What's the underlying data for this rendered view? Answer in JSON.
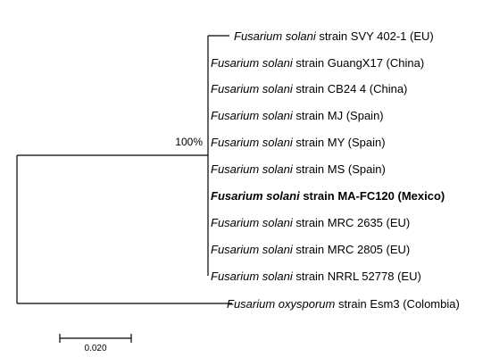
{
  "tree": {
    "bootstrap_label": "100%",
    "scale_label": "0.020",
    "ingroup": [
      {
        "species": "Fusarium solani",
        "rest": " strain SVY 402-1 (EU)",
        "bold": false
      },
      {
        "species": "Fusarium solani",
        "rest": " strain GuangX17 (China)",
        "bold": false
      },
      {
        "species": "Fusarium solani",
        "rest": " strain CB24 4 (China)",
        "bold": false
      },
      {
        "species": "Fusarium solani",
        "rest": " strain MJ (Spain)",
        "bold": false
      },
      {
        "species": "Fusarium solani",
        "rest": " strain MY (Spain)",
        "bold": false
      },
      {
        "species": "Fusarium solani",
        "rest": " strain MS (Spain)",
        "bold": false
      },
      {
        "species": "Fusarium solani",
        "rest": " strain MA-FC120 (Mexico)",
        "bold": true
      },
      {
        "species": "Fusarium solani",
        "rest": " strain MRC 2635 (EU)",
        "bold": false
      },
      {
        "species": "Fusarium solani",
        "rest": " strain MRC 2805 (EU)",
        "bold": false
      },
      {
        "species": "Fusarium solani",
        "rest": " strain NRRL 52778 (EU)",
        "bold": false
      }
    ],
    "outgroup": {
      "species": "Fusarium oxysporum",
      "rest": " strain Esm3 (Colombia)",
      "bold": false
    }
  }
}
